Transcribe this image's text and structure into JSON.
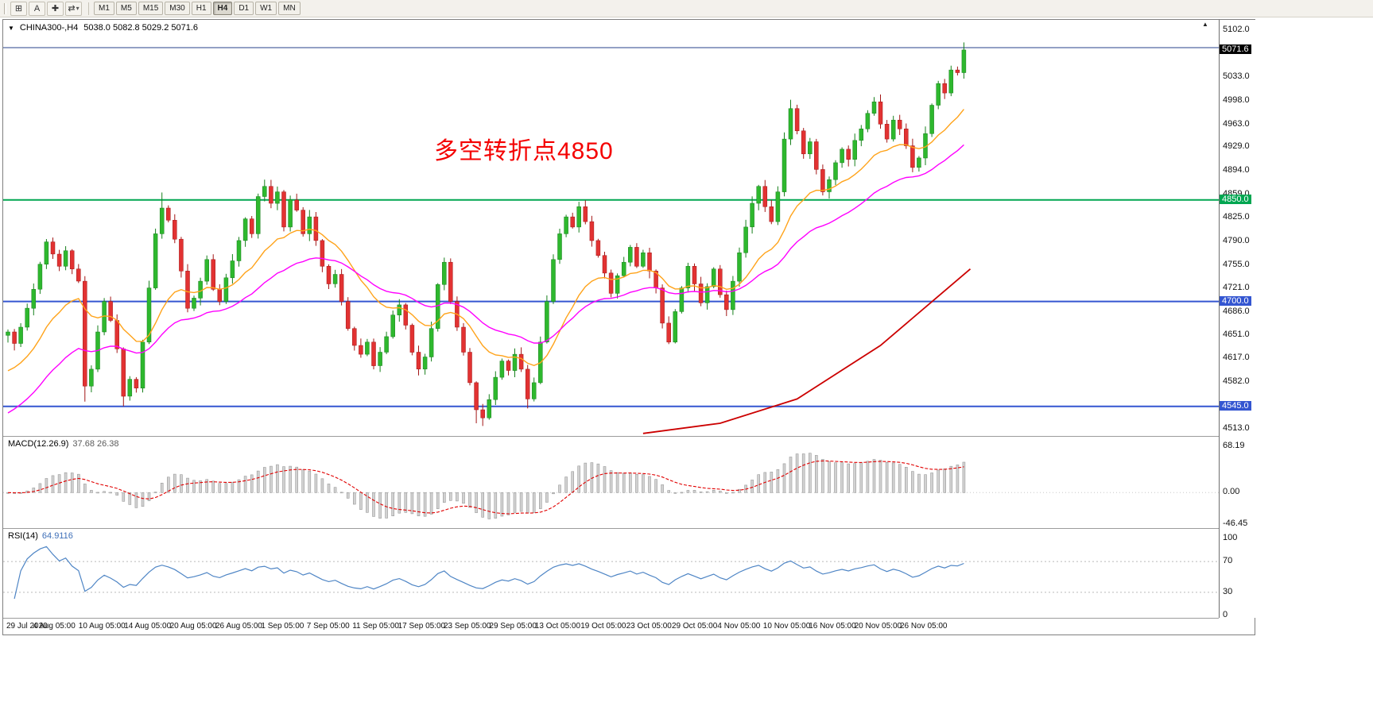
{
  "icons": {
    "dropdown_triangle": "▼",
    "shift_marker": "▲"
  },
  "header": {
    "symbol_title": "CHINA300-,H4",
    "ohlc_text": "5038.0 5082.8 5029.2 5071.6"
  },
  "toolbar": {
    "icon_buttons": [
      {
        "name": "grid-tool-button",
        "glyph": "⊞"
      },
      {
        "name": "annotation-a-button",
        "glyph": "A"
      },
      {
        "name": "crosshair-tool-button",
        "glyph": "✚"
      },
      {
        "name": "cycle-symbols-button",
        "glyph": "⇄",
        "caret": "▾"
      }
    ],
    "timeframes": [
      "M1",
      "M5",
      "M15",
      "M30",
      "H1",
      "H4",
      "D1",
      "W1",
      "MN"
    ],
    "active_timeframe": "H4"
  },
  "chart_data": {
    "type": "candlestick",
    "symbol": "CHINA300-",
    "timeframe": "H4",
    "last_ohlc": {
      "open": 5038.0,
      "high": 5082.8,
      "low": 5029.2,
      "close": 5071.6
    },
    "ylim": [
      4513.0,
      5102.0
    ],
    "annotation": {
      "text": "多空转折点4850",
      "color": "#f40000"
    },
    "x_labels": [
      "29 Jul 2020",
      "4 Aug 05:00",
      "10 Aug 05:00",
      "14 Aug 05:00",
      "20 Aug 05:00",
      "26 Aug 05:00",
      "1 Sep 05:00",
      "7 Sep 05:00",
      "11 Sep 05:00",
      "17 Sep 05:00",
      "23 Sep 05:00",
      "29 Sep 05:00",
      "13 Oct 05:00",
      "19 Oct 05:00",
      "23 Oct 05:00",
      "29 Oct 05:00",
      "4 Nov 05:00",
      "10 Nov 05:00",
      "16 Nov 05:00",
      "20 Nov 05:00",
      "26 Nov 05:00"
    ],
    "y_ticks": [
      5102.0,
      5033.0,
      4998.0,
      4963.0,
      4929.0,
      4894.0,
      4859.0,
      4825.0,
      4790.0,
      4755.0,
      4721.0,
      4686.0,
      4651.0,
      4617.0,
      4582.0,
      4513.0
    ],
    "current_price": {
      "price": 5071.6,
      "label": "5071.6",
      "color": "#000000"
    },
    "price_badges": [
      {
        "price": 4850.0,
        "label": "4850.0",
        "color": "#00A651"
      },
      {
        "price": 4700.0,
        "label": "4700.0",
        "color": "#3456D1"
      },
      {
        "price": 4545.0,
        "label": "4545.0",
        "color": "#3456D1"
      }
    ],
    "hlines": [
      {
        "price": 5075.0,
        "color": "#27408B",
        "width": 1
      },
      {
        "price": 4850.0,
        "color": "#00A651",
        "width": 2
      },
      {
        "price": 4700.0,
        "color": "#3456D1",
        "width": 2
      },
      {
        "price": 4545.0,
        "color": "#3456D1",
        "width": 2
      }
    ],
    "colors": {
      "up": "#2EB82E",
      "up_edge": "#17801C",
      "down": "#E23232",
      "down_edge": "#A31616"
    },
    "first_open": 4650,
    "closes": [
      4655,
      4638,
      4662,
      4690,
      4718,
      4755,
      4788,
      4770,
      4752,
      4775,
      4748,
      4730,
      4575,
      4600,
      4655,
      4700,
      4672,
      4630,
      4560,
      4585,
      4572,
      4640,
      4720,
      4800,
      4838,
      4820,
      4792,
      4745,
      4690,
      4705,
      4730,
      4762,
      4718,
      4700,
      4735,
      4760,
      4790,
      4822,
      4800,
      4855,
      4870,
      4845,
      4862,
      4810,
      4850,
      4835,
      4800,
      4825,
      4790,
      4752,
      4726,
      4740,
      4700,
      4660,
      4635,
      4622,
      4640,
      4605,
      4625,
      4648,
      4680,
      4695,
      4665,
      4625,
      4600,
      4618,
      4660,
      4725,
      4758,
      4700,
      4662,
      4625,
      4580,
      4540,
      4528,
      4555,
      4588,
      4612,
      4598,
      4622,
      4600,
      4556,
      4580,
      4640,
      4700,
      4762,
      4800,
      4825,
      4810,
      4840,
      4818,
      4790,
      4768,
      4742,
      4712,
      4738,
      4758,
      4780,
      4752,
      4772,
      4745,
      4720,
      4668,
      4640,
      4685,
      4720,
      4752,
      4726,
      4698,
      4722,
      4748,
      4710,
      4688,
      4730,
      4772,
      4810,
      4845,
      4870,
      4840,
      4818,
      4862,
      4940,
      4985,
      4952,
      4918,
      4936,
      4895,
      4862,
      4880,
      4905,
      4925,
      4910,
      4938,
      4955,
      4978,
      4995,
      4962,
      4940,
      4968,
      4955,
      4930,
      4898,
      4912,
      4948,
      4990,
      5022,
      5008,
      5042,
      5038,
      5071.6
    ],
    "wick_overrides": {
      "12": {
        "low": 4552
      },
      "18": {
        "low": 4545
      },
      "24": {
        "high": 4861
      },
      "40": {
        "high": 4880
      },
      "73": {
        "low": 4520
      },
      "74": {
        "low": 4516
      },
      "81": {
        "low": 4542
      },
      "122": {
        "high": 4998
      },
      "135": {
        "high": 5002
      },
      "149": {
        "high": 5082.8,
        "low": 5029.2
      }
    },
    "overlays": [
      {
        "name": "fast-ma",
        "type": "ema",
        "period": 16,
        "seed": 4590,
        "color": "#FFA31A"
      },
      {
        "name": "slow-ma",
        "type": "ema",
        "period": 34,
        "seed": 4528,
        "color": "#FF00FF"
      }
    ],
    "trendline": {
      "color": "#CC0000",
      "points": [
        [
          99,
          4505
        ],
        [
          111,
          4520
        ],
        [
          123,
          4556
        ],
        [
          136,
          4635
        ],
        [
          150,
          4748
        ]
      ]
    },
    "indicators": [
      {
        "type": "macd",
        "label": "MACD(12.26.9)",
        "display_values": "37.68 26.38",
        "fast": 12,
        "slow": 26,
        "signal": 9,
        "range": [
          -46.45,
          68.19
        ],
        "axis": [
          {
            "label": "68.19",
            "value": 68.19
          },
          {
            "label": "0.00",
            "value": 0
          },
          {
            "label": "-46.45",
            "value": -46.45
          }
        ]
      },
      {
        "type": "rsi",
        "label": "RSI(14)",
        "display_value": "64.9116",
        "period": 14,
        "levels": [
          70,
          30
        ],
        "range": [
          0,
          100
        ],
        "axis": [
          {
            "label": "100",
            "value": 100
          },
          {
            "label": "70",
            "value": 70
          },
          {
            "label": "30",
            "value": 30
          },
          {
            "label": "0",
            "value": 0
          }
        ]
      }
    ]
  }
}
